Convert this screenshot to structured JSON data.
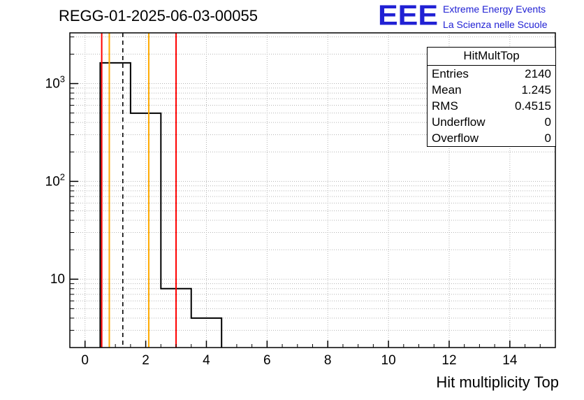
{
  "title": "REGG-01-2025-06-03-00055",
  "logo": {
    "acronym": "EEE",
    "line1": "Extreme Energy Events",
    "line2": "La Scienza nelle Scuole",
    "color": "#2121d4"
  },
  "stats": {
    "title": "HitMultTop",
    "rows": [
      {
        "label": "Entries",
        "value": "2140"
      },
      {
        "label": "Mean",
        "value": "1.245"
      },
      {
        "label": "RMS",
        "value": "0.4515"
      },
      {
        "label": "Underflow",
        "value": "0"
      },
      {
        "label": "Overflow",
        "value": "0"
      }
    ]
  },
  "chart_data": {
    "type": "bar",
    "title": "REGG-01-2025-06-03-00055",
    "xlabel": "Hit multiplicity Top",
    "ylabel": "",
    "x_range": [
      -0.5,
      15.5
    ],
    "y_range": [
      2,
      3300
    ],
    "y_scale": "log",
    "grid": true,
    "grid_color": "#b4b4b4",
    "x_ticks": [
      0,
      2,
      4,
      6,
      8,
      10,
      12,
      14
    ],
    "y_tick_decades": [
      1,
      2,
      3
    ],
    "y_tick_labels": [
      "10",
      "10^2",
      "10^3"
    ],
    "hist_color": "#000000",
    "bins": [
      {
        "low": 0.5,
        "high": 1.5,
        "count": 1630
      },
      {
        "low": 1.5,
        "high": 2.5,
        "count": 498
      },
      {
        "low": 2.5,
        "high": 3.5,
        "count": 8
      },
      {
        "low": 3.5,
        "high": 4.5,
        "count": 4
      }
    ],
    "markers": [
      {
        "x": 0.55,
        "color": "#ff0000",
        "style": "solid",
        "name": "red-lower-limit"
      },
      {
        "x": 0.8,
        "color": "#ffaa00",
        "style": "solid",
        "name": "yellow-lower-limit"
      },
      {
        "x": 1.245,
        "color": "#000000",
        "style": "dashed",
        "name": "mean-line"
      },
      {
        "x": 2.1,
        "color": "#ffaa00",
        "style": "solid",
        "name": "yellow-upper-limit"
      },
      {
        "x": 3.0,
        "color": "#ff0000",
        "style": "solid",
        "name": "red-upper-limit"
      }
    ]
  }
}
